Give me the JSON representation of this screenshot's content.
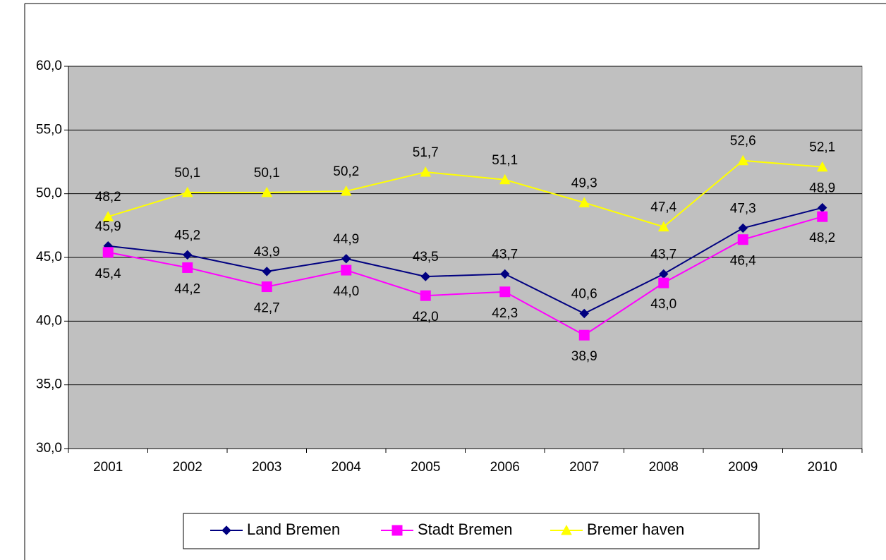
{
  "chart_data": {
    "type": "line",
    "categories": [
      "2001",
      "2002",
      "2003",
      "2004",
      "2005",
      "2006",
      "2007",
      "2008",
      "2009",
      "2010"
    ],
    "series": [
      {
        "name": "Land Bremen",
        "color": "#000080",
        "marker": "diamond",
        "label_position": "above",
        "values": [
          45.9,
          45.2,
          43.9,
          44.9,
          43.5,
          43.7,
          40.6,
          43.7,
          47.3,
          48.9
        ],
        "value_labels": [
          "45,9",
          "45,2",
          "43,9",
          "44,9",
          "43,5",
          "43,7",
          "40,6",
          "43,7",
          "47,3",
          "48,9"
        ]
      },
      {
        "name": "Stadt Bremen",
        "color": "#ff00ff",
        "marker": "square",
        "label_position": "below",
        "values": [
          45.4,
          44.2,
          42.7,
          44.0,
          42.0,
          42.3,
          38.9,
          43.0,
          46.4,
          48.2
        ],
        "value_labels": [
          "45,4",
          "44,2",
          "42,7",
          "44,0",
          "42,0",
          "42,3",
          "38,9",
          "43,0",
          "46,4",
          "48,2"
        ]
      },
      {
        "name": "Bremer haven",
        "color": "#ffff00",
        "marker": "triangle",
        "label_position": "above",
        "values": [
          48.2,
          50.1,
          50.1,
          50.2,
          51.7,
          51.1,
          49.3,
          47.4,
          52.6,
          52.1
        ],
        "value_labels": [
          "48,2",
          "50,1",
          "50,1",
          "50,2",
          "51,7",
          "51,1",
          "49,3",
          "47,4",
          "52,6",
          "52,1"
        ]
      }
    ],
    "ylim": [
      30,
      60
    ],
    "yticks": [
      {
        "value": 30,
        "label": "30,0"
      },
      {
        "value": 35,
        "label": "35,0"
      },
      {
        "value": 40,
        "label": "40,0"
      },
      {
        "value": 45,
        "label": "45,0"
      },
      {
        "value": 50,
        "label": "50,0"
      },
      {
        "value": 55,
        "label": "55,0"
      },
      {
        "value": 60,
        "label": "60,0"
      }
    ],
    "grid": true,
    "plot_background": "#c0c0c0",
    "legend": "bottom"
  }
}
